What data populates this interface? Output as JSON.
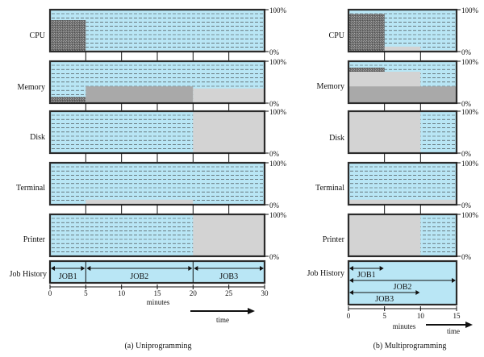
{
  "resources": [
    {
      "label": "CPU"
    },
    {
      "label": "Memory"
    },
    {
      "label": "Disk"
    },
    {
      "label": "Terminal"
    },
    {
      "label": "Printer"
    }
  ],
  "pct": {
    "top": "100%",
    "bottom": "0%"
  },
  "job_history_label": "Job History",
  "x_axis_label": "minutes",
  "time_label": "time",
  "colors": {
    "background": "#b9e6f5",
    "dash": "#3a3a3a",
    "usage": "#d3d3d3",
    "cpu_busy": "#7d7d7d",
    "mem_dark": "#a9a9a9",
    "frame": "#2b2b2b"
  },
  "chart_data": [
    {
      "type": "area",
      "title": "(a) Uniprogramming",
      "x_unit": "minutes",
      "xlim": [
        0,
        30
      ],
      "ticks": [
        "0",
        "5",
        "10",
        "15",
        "20",
        "25",
        "30"
      ],
      "tick_values": [
        0,
        5,
        10,
        15,
        20,
        25,
        30
      ],
      "ylim": [
        0,
        100
      ],
      "series": [
        {
          "name": "CPU",
          "segments": [
            {
              "from": 0,
              "to": 5,
              "value": 75,
              "shade": "cpu_busy"
            },
            {
              "from": 5,
              "to": 20,
              "value": 3,
              "shade": "usage"
            },
            {
              "from": 20,
              "to": 30,
              "value": 3,
              "shade": "usage"
            }
          ]
        },
        {
          "name": "Memory",
          "segments": [
            {
              "from": 0,
              "to": 5,
              "value": 15,
              "shade": "cpu_busy"
            },
            {
              "from": 5,
              "to": 20,
              "value": 40,
              "shade": "mem_dark"
            },
            {
              "from": 20,
              "to": 30,
              "value": 35,
              "shade": "usage"
            }
          ]
        },
        {
          "name": "Disk",
          "segments": [
            {
              "from": 20,
              "to": 30,
              "value": 100,
              "shade": "usage"
            }
          ]
        },
        {
          "name": "Terminal",
          "segments": [
            {
              "from": 5,
              "to": 20,
              "value": 12,
              "shade": "usage"
            }
          ]
        },
        {
          "name": "Printer",
          "segments": [
            {
              "from": 20,
              "to": 30,
              "value": 100,
              "shade": "usage"
            }
          ]
        }
      ],
      "jobs": [
        {
          "name": "JOB1",
          "from": 0,
          "to": 5
        },
        {
          "name": "JOB2",
          "from": 5,
          "to": 20
        },
        {
          "name": "JOB3",
          "from": 20,
          "to": 30
        }
      ]
    },
    {
      "type": "area",
      "title": "(b) Multiprogramming",
      "x_unit": "minutes",
      "xlim": [
        0,
        15
      ],
      "ticks": [
        "0",
        "5",
        "10",
        "15"
      ],
      "tick_values": [
        0,
        5,
        10,
        15
      ],
      "ylim": [
        0,
        100
      ],
      "series": [
        {
          "name": "CPU",
          "segments": [
            {
              "from": 0,
              "to": 5,
              "value": 90,
              "shade": "cpu_busy"
            },
            {
              "from": 5,
              "to": 10,
              "value": 12,
              "shade": "usage"
            },
            {
              "from": 10,
              "to": 15,
              "value": 3,
              "shade": "usage"
            }
          ]
        },
        {
          "name": "Memory",
          "segments": [
            {
              "from": 0,
              "to": 5,
              "value": 85,
              "shade": "cpu_busy",
              "band_from": 75
            },
            {
              "from": 0,
              "to": 10,
              "value": 75,
              "shade": "usage"
            },
            {
              "from": 0,
              "to": 15,
              "value": 40,
              "shade": "mem_dark"
            }
          ]
        },
        {
          "name": "Disk",
          "segments": [
            {
              "from": 0,
              "to": 10,
              "value": 100,
              "shade": "usage"
            }
          ]
        },
        {
          "name": "Terminal",
          "segments": [
            {
              "from": 0,
              "to": 15,
              "value": 12,
              "shade": "usage"
            }
          ]
        },
        {
          "name": "Printer",
          "segments": [
            {
              "from": 0,
              "to": 10,
              "value": 100,
              "shade": "usage"
            }
          ]
        }
      ],
      "jobs": [
        {
          "name": "JOB1",
          "from": 0,
          "to": 5
        },
        {
          "name": "JOB2",
          "from": 0,
          "to": 15
        },
        {
          "name": "JOB3",
          "from": 0,
          "to": 10
        }
      ]
    }
  ]
}
